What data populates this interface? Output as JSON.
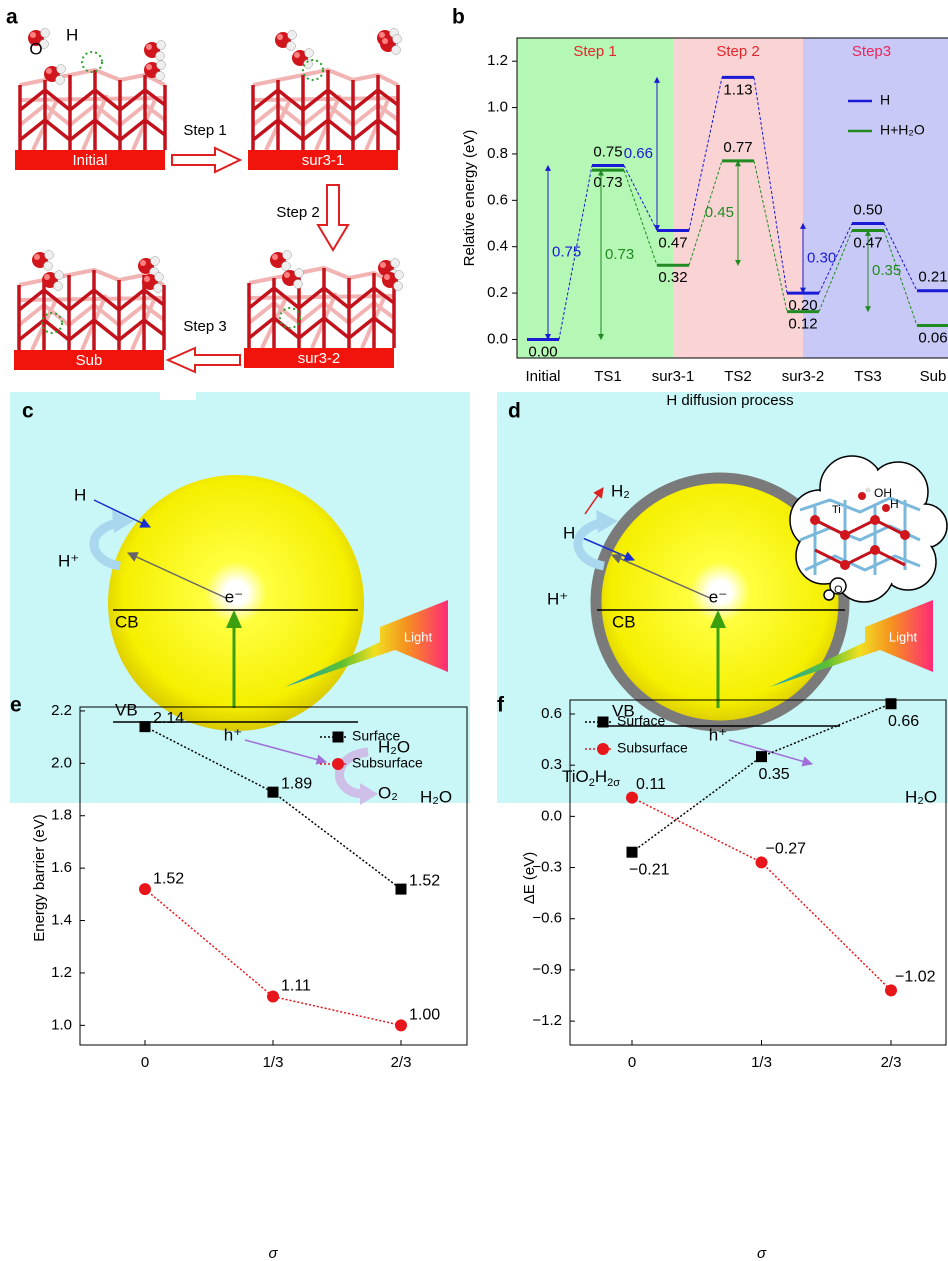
{
  "panel_a": {
    "label": "a",
    "atom_o": "O",
    "atom_h": "H",
    "states": [
      "Initial",
      "sur3-1",
      "sur3-2",
      "Sub"
    ],
    "steps": [
      "Step 1",
      "Step 2",
      "Step 3"
    ]
  },
  "chart_data": [
    {
      "type": "energy",
      "label": "b",
      "xlabel": "H diffusion process",
      "ylabel": "Relative energy (eV)",
      "categories": [
        "Initial",
        "TS1",
        "sur3-1",
        "TS2",
        "sur3-2",
        "TS3",
        "Sub"
      ],
      "ylim": [
        -0.08,
        1.3
      ],
      "yticks": [
        {
          "value": 0,
          "label": "0.0"
        },
        0.2,
        0.4,
        0.6,
        0.8,
        {
          "value": 1,
          "label": "1.0"
        },
        1.2
      ],
      "legend": "upper right",
      "steps": [
        {
          "label": "Step 1",
          "color": "#b5f7b5",
          "label_color": "#e3262b"
        },
        {
          "label": "Step 2",
          "color": "#fad4d4",
          "label_color": "#e3262b"
        },
        {
          "label": "Step3",
          "color": "#c9c9f7",
          "label_color": "#e8285a"
        }
      ],
      "series": [
        {
          "name": "H",
          "color": "#1a1ad6",
          "values": [
            0,
            0.75,
            0.47,
            1.13,
            0.2,
            0.5,
            0.21
          ],
          "value_labels": [
            "0.00",
            "0.75",
            "0.47",
            "1.13",
            "0.20",
            "0.50",
            "0.21"
          ],
          "barriers": [
            {
              "value": 0.75,
              "label": "0.75"
            },
            {
              "value": 0.66,
              "label": "0.66"
            },
            {
              "value": 0.3,
              "label": "0.30"
            }
          ]
        },
        {
          "name": "H+H₂O",
          "color": "#218a21",
          "values": [
            null,
            0.73,
            0.32,
            0.77,
            0.12,
            0.47,
            0.06
          ],
          "value_labels": [
            null,
            "0.73",
            "0.32",
            "0.77",
            "0.12",
            "0.47",
            "0.06"
          ],
          "barriers": [
            {
              "value": 0.73,
              "label": "0.73"
            },
            {
              "value": 0.45,
              "label": "0.45"
            },
            {
              "value": 0.35,
              "label": "0.35"
            }
          ]
        }
      ]
    },
    {
      "type": "line",
      "label": "e",
      "xlabel": "σ",
      "ylabel": "Energy barrier (eV)",
      "categories": [
        "0",
        "1/3",
        "2/3"
      ],
      "ylim": [
        0.925,
        2.215
      ],
      "yticks": [
        {
          "value": 1,
          "label": "1.0"
        },
        1.2,
        1.4,
        1.6,
        1.8,
        {
          "value": 2,
          "label": "2.0"
        },
        2.2
      ],
      "legend": "upper right",
      "series": [
        {
          "name": "Surface",
          "color": "#000000",
          "marker": "square",
          "values": [
            2.14,
            1.89,
            1.52
          ]
        },
        {
          "name": "Subsurface",
          "color": "#e8161b",
          "marker": "circle",
          "values": [
            1.52,
            1.11,
            1
          ],
          "value_labels": [
            "1.52",
            "1.11",
            "1.00"
          ]
        }
      ]
    },
    {
      "type": "line",
      "label": "f",
      "xlabel": "σ",
      "ylabel": "ΔE (eV)",
      "categories": [
        "0",
        "1/3",
        "2/3"
      ],
      "ylim": [
        -1.34,
        0.682
      ],
      "yticks": [
        {
          "value": -1.2,
          "label": "−1.2"
        },
        {
          "value": -0.9,
          "label": "−0.9"
        },
        {
          "value": -0.6,
          "label": "−0.6"
        },
        {
          "value": -0.3,
          "label": "−0.3"
        },
        {
          "value": 0,
          "label": "0.0"
        },
        0.3,
        0.6
      ],
      "legend": "upper left",
      "series": [
        {
          "name": "Surface",
          "color": "#000000",
          "marker": "square",
          "values": [
            -0.21,
            0.35,
            0.66
          ],
          "value_labels": [
            "−0.21",
            "0.35",
            "0.66"
          ]
        },
        {
          "name": "Subsurface",
          "color": "#e8161b",
          "marker": "circle",
          "values": [
            0.11,
            -0.27,
            -1.02
          ],
          "value_labels": [
            "0.11",
            "−0.27",
            "−1.02"
          ]
        }
      ]
    }
  ],
  "panel_c": {
    "label": "c",
    "h": "H",
    "h_plus": "H⁺",
    "electron": "e⁻",
    "cb": "CB",
    "vb": "VB",
    "hole": "h⁺",
    "light": "Light",
    "h2o_in": "H₂O",
    "o2": "O₂",
    "h2o": "H₂O"
  },
  "panel_d": {
    "label": "d",
    "h2": "H₂",
    "h": "H",
    "h_plus": "H⁺",
    "electron": "e⁻",
    "cb": "CB",
    "vb": "VB",
    "hole": "h⁺",
    "light": "Light",
    "shell": [
      "TiO",
      "2",
      "H",
      "2σ"
    ],
    "h2o": "H₂O",
    "inset": {
      "oh": "OH",
      "h": "H",
      "ti": "Ti",
      "o": "O"
    }
  }
}
